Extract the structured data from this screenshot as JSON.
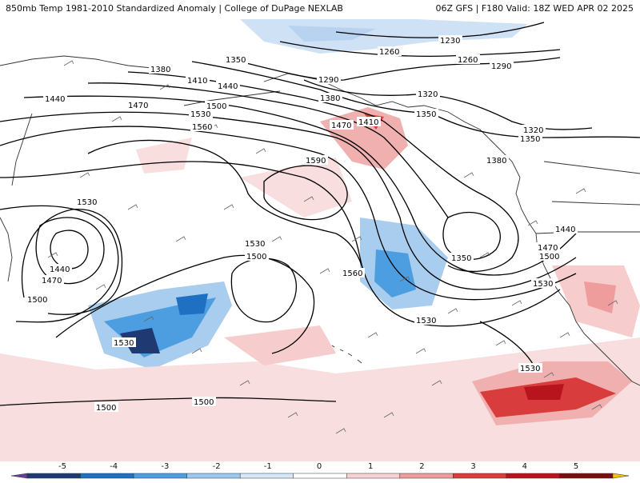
{
  "header": {
    "left_title": "850mb Temp 1981-2010 Standardized Anomaly | College of DuPage NEXLAB",
    "right_title": "06Z GFS | F180 Valid: 18Z WED APR 02 2025"
  },
  "contour_labels": [
    "1230",
    "1260",
    "1290",
    "1320",
    "1350",
    "1380",
    "1410",
    "1440",
    "1470",
    "1500",
    "1530",
    "1560",
    "1590"
  ],
  "colorbar": {
    "ticks": [
      "-5",
      "-4",
      "-3",
      "-2",
      "-1",
      "0",
      "1",
      "2",
      "3",
      "4",
      "5"
    ],
    "colors": [
      "#6a3d9a",
      "#1f3a73",
      "#1f6fc2",
      "#4d9ee0",
      "#9cc8ee",
      "#d6e8f7",
      "#ffffff",
      "#f6d3d3",
      "#ee9c9c",
      "#d93c3c",
      "#b8141e",
      "#7a0d10",
      "#f5c400"
    ]
  }
}
